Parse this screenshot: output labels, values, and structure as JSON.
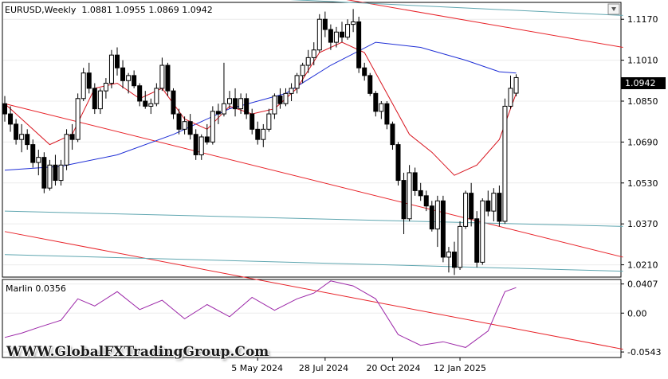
{
  "header": {
    "symbol_line": "EURUSD,Weekly  1.0881 1.0955 1.0869 1.0942"
  },
  "indicator": {
    "label": "Marlin 0.0356"
  },
  "watermark": "WWW.GlobalFXTradingGroup.Com",
  "colors": {
    "up": "#ffffff",
    "down": "#000000",
    "ma_slow": "#1f2fd6",
    "ma_fast": "#d8141e",
    "channel_red": "#e8242a",
    "channel_teal": "#5fa6b0",
    "marlin": "#9c27a8",
    "grid": "#ececec"
  },
  "chart_data": [
    {
      "type": "candlestick",
      "title": "EURUSD,Weekly",
      "last_price": "1.0942",
      "ylim": [
        1.0162,
        1.1236
      ],
      "y_ticks": [
        "1.1170",
        "1.1010",
        "1.0850",
        "1.0690",
        "1.0530",
        "1.0370",
        "1.0210"
      ],
      "x_ticks": [
        {
          "label": "5 May 2024",
          "index": 45
        },
        {
          "label": "28 Jul 2024",
          "index": 57
        },
        {
          "label": "20 Oct 2024",
          "index": 69
        },
        {
          "label": "12 Jan 2025",
          "index": 81
        }
      ],
      "candles": [
        [
          1.084,
          1.087,
          1.077,
          1.08
        ],
        [
          1.08,
          1.083,
          1.073,
          1.076
        ],
        [
          1.076,
          1.078,
          1.068,
          1.07
        ],
        [
          1.07,
          1.076,
          1.065,
          1.072
        ],
        [
          1.072,
          1.074,
          1.066,
          1.068
        ],
        [
          1.068,
          1.07,
          1.059,
          1.061
        ],
        [
          1.061,
          1.066,
          1.056,
          1.063
        ],
        [
          1.063,
          1.065,
          1.049,
          1.051
        ],
        [
          1.051,
          1.062,
          1.05,
          1.06
        ],
        [
          1.06,
          1.064,
          1.052,
          1.054
        ],
        [
          1.054,
          1.062,
          1.052,
          1.06
        ],
        [
          1.06,
          1.074,
          1.058,
          1.072
        ],
        [
          1.072,
          1.076,
          1.066,
          1.07
        ],
        [
          1.07,
          1.088,
          1.069,
          1.086
        ],
        [
          1.086,
          1.098,
          1.085,
          1.096
        ],
        [
          1.096,
          1.1,
          1.088,
          1.09
        ],
        [
          1.09,
          1.092,
          1.08,
          1.082
        ],
        [
          1.082,
          1.09,
          1.08,
          1.089
        ],
        [
          1.089,
          1.094,
          1.086,
          1.092
        ],
        [
          1.092,
          1.105,
          1.09,
          1.103
        ],
        [
          1.103,
          1.106,
          1.095,
          1.098
        ],
        [
          1.098,
          1.101,
          1.09,
          1.093
        ],
        [
          1.093,
          1.096,
          1.088,
          1.095
        ],
        [
          1.095,
          1.097,
          1.09,
          1.091
        ],
        [
          1.091,
          1.092,
          1.083,
          1.085
        ],
        [
          1.085,
          1.089,
          1.082,
          1.083
        ],
        [
          1.083,
          1.086,
          1.08,
          1.084
        ],
        [
          1.084,
          1.092,
          1.083,
          1.09
        ],
        [
          1.09,
          1.102,
          1.089,
          1.099
        ],
        [
          1.099,
          1.1,
          1.087,
          1.089
        ],
        [
          1.089,
          1.09,
          1.078,
          1.08
        ],
        [
          1.08,
          1.082,
          1.072,
          1.074
        ],
        [
          1.074,
          1.079,
          1.072,
          1.077
        ],
        [
          1.077,
          1.08,
          1.07,
          1.072
        ],
        [
          1.072,
          1.074,
          1.062,
          1.064
        ],
        [
          1.064,
          1.072,
          1.062,
          1.071
        ],
        [
          1.071,
          1.076,
          1.068,
          1.069
        ],
        [
          1.069,
          1.083,
          1.068,
          1.081
        ],
        [
          1.081,
          1.084,
          1.076,
          1.08
        ],
        [
          1.08,
          1.1,
          1.079,
          1.084
        ],
        [
          1.084,
          1.089,
          1.082,
          1.086
        ],
        [
          1.086,
          1.09,
          1.079,
          1.082
        ],
        [
          1.082,
          1.088,
          1.08,
          1.086
        ],
        [
          1.086,
          1.088,
          1.078,
          1.08
        ],
        [
          1.08,
          1.082,
          1.072,
          1.074
        ],
        [
          1.074,
          1.077,
          1.068,
          1.07
        ],
        [
          1.07,
          1.076,
          1.067,
          1.074
        ],
        [
          1.074,
          1.082,
          1.073,
          1.08
        ],
        [
          1.08,
          1.088,
          1.078,
          1.087
        ],
        [
          1.087,
          1.09,
          1.082,
          1.084
        ],
        [
          1.084,
          1.09,
          1.083,
          1.088
        ],
        [
          1.088,
          1.092,
          1.085,
          1.09
        ],
        [
          1.09,
          1.096,
          1.088,
          1.095
        ],
        [
          1.095,
          1.1,
          1.092,
          1.099
        ],
        [
          1.099,
          1.105,
          1.096,
          1.102
        ],
        [
          1.102,
          1.108,
          1.099,
          1.105
        ],
        [
          1.105,
          1.119,
          1.104,
          1.117
        ],
        [
          1.117,
          1.12,
          1.11,
          1.113
        ],
        [
          1.113,
          1.115,
          1.105,
          1.108
        ],
        [
          1.108,
          1.114,
          1.106,
          1.112
        ],
        [
          1.112,
          1.116,
          1.108,
          1.11
        ],
        [
          1.11,
          1.117,
          1.109,
          1.115
        ],
        [
          1.115,
          1.121,
          1.112,
          1.116
        ],
        [
          1.116,
          1.118,
          1.096,
          1.098
        ],
        [
          1.098,
          1.1,
          1.093,
          1.095
        ],
        [
          1.095,
          1.096,
          1.087,
          1.088
        ],
        [
          1.088,
          1.089,
          1.079,
          1.081
        ],
        [
          1.081,
          1.085,
          1.078,
          1.084
        ],
        [
          1.084,
          1.085,
          1.074,
          1.076
        ],
        [
          1.076,
          1.077,
          1.066,
          1.068
        ],
        [
          1.068,
          1.069,
          1.052,
          1.054
        ],
        [
          1.054,
          1.057,
          1.033,
          1.039
        ],
        [
          1.039,
          1.06,
          1.038,
          1.057
        ],
        [
          1.057,
          1.059,
          1.048,
          1.05
        ],
        [
          1.05,
          1.053,
          1.046,
          1.048
        ],
        [
          1.048,
          1.05,
          1.042,
          1.044
        ],
        [
          1.044,
          1.046,
          1.034,
          1.035
        ],
        [
          1.035,
          1.048,
          1.028,
          1.046
        ],
        [
          1.046,
          1.048,
          1.022,
          1.024
        ],
        [
          1.024,
          1.028,
          1.018,
          1.026
        ],
        [
          1.026,
          1.03,
          1.017,
          1.02
        ],
        [
          1.02,
          1.038,
          1.019,
          1.036
        ],
        [
          1.036,
          1.05,
          1.035,
          1.049
        ],
        [
          1.049,
          1.053,
          1.036,
          1.039
        ],
        [
          1.039,
          1.042,
          1.02,
          1.022
        ],
        [
          1.022,
          1.047,
          1.021,
          1.046
        ],
        [
          1.046,
          1.05,
          1.04,
          1.042
        ],
        [
          1.042,
          1.051,
          1.038,
          1.049
        ],
        [
          1.049,
          1.052,
          1.036,
          1.038
        ],
        [
          1.038,
          1.086,
          1.037,
          1.083
        ],
        [
          1.083,
          1.095,
          1.082,
          1.09
        ],
        [
          1.0881,
          1.0955,
          1.0869,
          1.0942
        ]
      ],
      "ma_slow_points": [
        [
          0,
          1.058
        ],
        [
          10,
          1.0595
        ],
        [
          20,
          1.064
        ],
        [
          30,
          1.072
        ],
        [
          40,
          1.082
        ],
        [
          50,
          1.088
        ],
        [
          58,
          1.099
        ],
        [
          66,
          1.108
        ],
        [
          74,
          1.106
        ],
        [
          82,
          1.101
        ],
        [
          88,
          1.0965
        ],
        [
          91,
          1.096
        ]
      ],
      "ma_fast_points": [
        [
          0,
          1.084
        ],
        [
          4,
          1.076
        ],
        [
          8,
          1.068
        ],
        [
          12,
          1.072
        ],
        [
          16,
          1.09
        ],
        [
          20,
          1.092
        ],
        [
          24,
          1.086
        ],
        [
          28,
          1.09
        ],
        [
          32,
          1.078
        ],
        [
          36,
          1.074
        ],
        [
          40,
          1.083
        ],
        [
          44,
          1.08
        ],
        [
          48,
          1.082
        ],
        [
          52,
          1.09
        ],
        [
          56,
          1.104
        ],
        [
          60,
          1.108
        ],
        [
          64,
          1.104
        ],
        [
          68,
          1.088
        ],
        [
          72,
          1.072
        ],
        [
          76,
          1.065
        ],
        [
          80,
          1.056
        ],
        [
          84,
          1.06
        ],
        [
          88,
          1.07
        ],
        [
          91,
          1.088
        ]
      ],
      "channel_lines": [
        {
          "color": "red",
          "p1": [
            0,
            1.084
          ],
          "p2": [
            110,
            1.024
          ]
        },
        {
          "color": "red",
          "p1": [
            0,
            1.034
          ],
          "p2": [
            110,
            0.988
          ]
        },
        {
          "color": "red",
          "p1": [
            60,
            1.125
          ],
          "p2": [
            110,
            1.106
          ]
        },
        {
          "color": "teal",
          "p1": [
            0,
            1.13
          ],
          "p2": [
            110,
            1.1185
          ]
        },
        {
          "color": "teal",
          "p1": [
            0,
            1.042
          ],
          "p2": [
            110,
            1.036
          ]
        },
        {
          "color": "teal",
          "p1": [
            0,
            1.025
          ],
          "p2": [
            110,
            1.0185
          ]
        }
      ]
    },
    {
      "type": "line",
      "title": "Marlin 0.0356",
      "ylim": [
        -0.062,
        0.047
      ],
      "y_ticks": [
        "0.0407",
        "0.00",
        "-0.0543"
      ],
      "x": [
        0,
        3,
        6,
        10,
        13,
        16,
        20,
        24,
        28,
        32,
        36,
        40,
        44,
        48,
        52,
        55,
        58,
        62,
        66,
        70,
        74,
        78,
        82,
        86,
        89,
        91
      ],
      "values": [
        -0.034,
        -0.028,
        -0.02,
        -0.01,
        0.02,
        0.01,
        0.03,
        0.005,
        0.018,
        -0.008,
        0.012,
        -0.005,
        0.022,
        0.004,
        0.02,
        0.028,
        0.045,
        0.038,
        0.02,
        -0.03,
        -0.045,
        -0.04,
        -0.048,
        -0.025,
        0.03,
        0.0356
      ]
    }
  ]
}
